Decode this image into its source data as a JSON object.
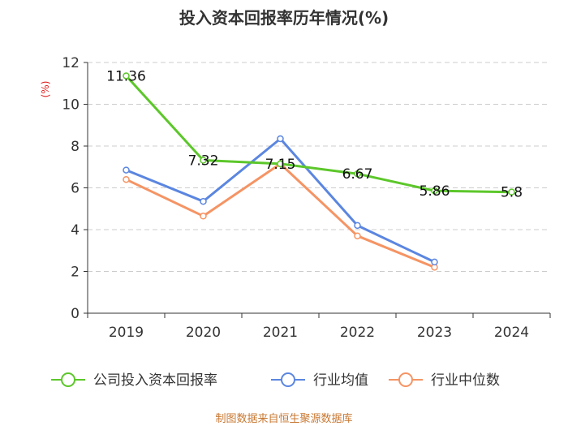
{
  "chart_data": {
    "type": "line",
    "title": "投入资本回报率历年情况(%)",
    "ylabel": "(%)",
    "categories": [
      "2019",
      "2020",
      "2021",
      "2022",
      "2023",
      "2024"
    ],
    "ylim": [
      0,
      12
    ],
    "yticks": [
      0,
      2,
      4,
      6,
      8,
      10,
      12
    ],
    "grid": true,
    "legend_position": "bottom",
    "series": [
      {
        "name": "公司投入资本回报率",
        "color": "#5cc72a",
        "values": [
          11.36,
          7.32,
          7.15,
          6.67,
          5.86,
          5.8
        ],
        "labels": [
          "11.36",
          "7.32",
          "7.15",
          "6.67",
          "5.86",
          "5.8"
        ]
      },
      {
        "name": "行业均值",
        "color": "#5b86e0",
        "values": [
          6.85,
          5.35,
          8.35,
          4.2,
          2.45,
          null
        ]
      },
      {
        "name": "行业中位数",
        "color": "#f59464",
        "values": [
          6.4,
          4.65,
          7.15,
          3.7,
          2.2,
          null
        ]
      }
    ],
    "source": "制图数据来自恒生聚源数据库"
  }
}
